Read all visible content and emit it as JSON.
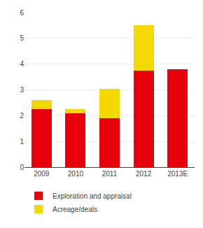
{
  "chart_data": {
    "type": "bar",
    "stacked": true,
    "categories": [
      "2009",
      "2010",
      "2011",
      "2012",
      "2013E"
    ],
    "series": [
      {
        "name": "Exploration and appraisal",
        "color": "#e8000d",
        "values": [
          2.25,
          2.1,
          1.9,
          3.75,
          3.8
        ]
      },
      {
        "name": "Acreage/deals",
        "color": "#f5d800",
        "values": [
          0.35,
          0.15,
          1.15,
          1.75,
          0.0
        ]
      }
    ],
    "ylim": [
      0,
      6
    ],
    "yticks": [
      0,
      1,
      2,
      3,
      4,
      5,
      6
    ],
    "grid": true,
    "legend": "bottom"
  }
}
